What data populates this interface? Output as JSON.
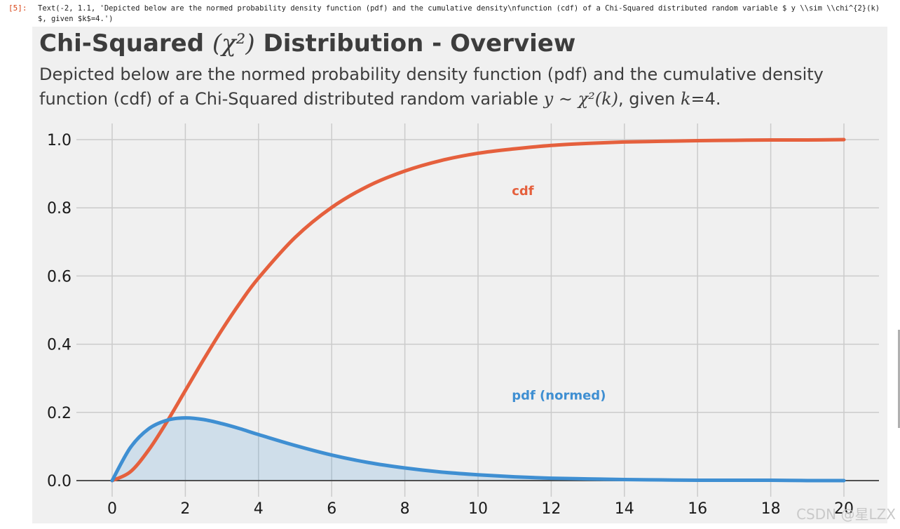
{
  "cell": {
    "prompt": "[5]:",
    "output_text": "Text(-2, 1.1, 'Depicted below are the normed probability density function (pdf) and the cumulative density\\nfunction (cdf) of a Chi-Squared distributed random variable $ y \\\\sim \\\\chi^{2}(k) $, given $k$=4.')"
  },
  "figure": {
    "title_text": "Chi-Squared ",
    "title_math": "(χ²)",
    "title_rest": " Distribution - Overview",
    "subtitle_line1": "Depicted below are the normed probability density function (pdf) and the cumulative density",
    "subtitle_line2_a": "function (cdf) of a Chi-Squared distributed random variable ",
    "subtitle_line2_math": "y ∼ χ²(k)",
    "subtitle_line2_b": ", given ",
    "subtitle_line2_k": "k",
    "subtitle_line2_c": "=4."
  },
  "watermark": "CSDN @星LZX",
  "chart_data": {
    "type": "line",
    "x_range": [
      0,
      20
    ],
    "ylim": [
      0,
      1.0
    ],
    "x_ticks": [
      0,
      2,
      4,
      6,
      8,
      10,
      12,
      14,
      16,
      18,
      20
    ],
    "y_ticks": [
      0.0,
      0.2,
      0.4,
      0.6,
      0.8,
      1.0
    ],
    "y_tick_labels": [
      "0.0",
      "0.2",
      "0.4",
      "0.6",
      "0.8",
      "1.0"
    ],
    "x_tick_labels": [
      "0",
      "2",
      "4",
      "6",
      "8",
      "10",
      "12",
      "14",
      "16",
      "18",
      "20"
    ],
    "grid": true,
    "series": [
      {
        "name": "cdf",
        "color": "#e5603d",
        "x": [
          0,
          0.5,
          1,
          1.5,
          2,
          2.5,
          3,
          3.5,
          4,
          5,
          6,
          7,
          8,
          9,
          10,
          11,
          12,
          13,
          14,
          15,
          16,
          17,
          18,
          19,
          20
        ],
        "y": [
          0,
          0.026,
          0.09,
          0.173,
          0.264,
          0.355,
          0.442,
          0.522,
          0.594,
          0.713,
          0.801,
          0.864,
          0.908,
          0.939,
          0.96,
          0.973,
          0.983,
          0.989,
          0.993,
          0.995,
          0.997,
          0.998,
          0.999,
          0.999,
          1.0
        ]
      },
      {
        "name": "pdf (normed)",
        "color": "#3f8fd2",
        "fill": true,
        "x": [
          0,
          0.5,
          1,
          1.5,
          2,
          2.5,
          3,
          3.5,
          4,
          5,
          6,
          7,
          8,
          9,
          10,
          11,
          12,
          13,
          14,
          15,
          16,
          17,
          18,
          19,
          20
        ],
        "y": [
          0,
          0.097,
          0.152,
          0.177,
          0.184,
          0.179,
          0.167,
          0.152,
          0.135,
          0.103,
          0.075,
          0.053,
          0.037,
          0.025,
          0.017,
          0.011,
          0.007,
          0.005,
          0.003,
          0.002,
          0.001,
          0.001,
          0.001,
          0.0,
          0.0
        ]
      }
    ],
    "annotations": [
      {
        "text": "cdf",
        "x": 11,
        "y": 0.85,
        "color": "#e5603d"
      },
      {
        "text": "pdf (normed)",
        "x": 11,
        "y": 0.25,
        "color": "#3f8fd2"
      }
    ]
  }
}
